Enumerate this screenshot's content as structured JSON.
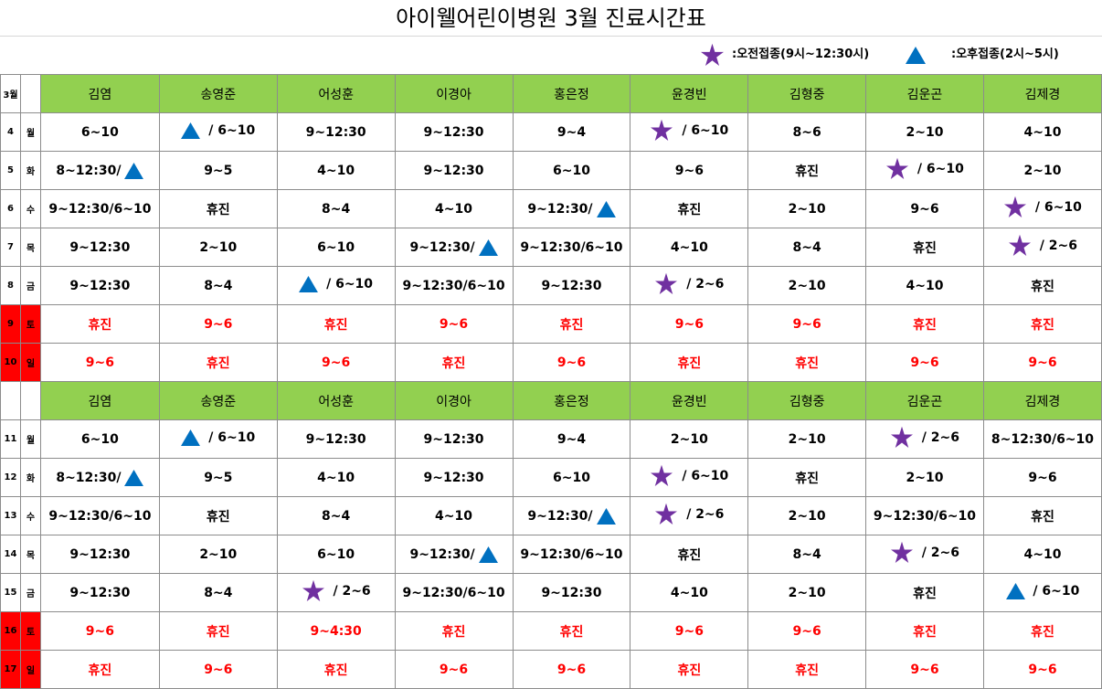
{
  "title": "아이웰어린이병원 3월 진료시간표",
  "legend": {
    "am": {
      "icon": "star-icon",
      "color": "#7030a0",
      "label": ":오전접종(9시~12:30시)"
    },
    "pm": {
      "icon": "triangle-icon",
      "color": "#0070c0",
      "label": ":오후접종(2시~5시)"
    }
  },
  "colors": {
    "header_bg": "#92d050",
    "weekend_text": "#ff0000",
    "weekend_day_bg": "#ff0000"
  },
  "month_label": "3월",
  "doctors": [
    "김염",
    "송영준",
    "어성훈",
    "이경아",
    "홍은정",
    "윤경빈",
    "김형중",
    "김운곤",
    "김제경"
  ],
  "weeks": [
    {
      "show_month": true,
      "rows": [
        {
          "date": "4",
          "dow": "월",
          "weekend": false,
          "cells": [
            {
              "t": "6~10"
            },
            {
              "pre": "tri",
              "t": " / 6~10"
            },
            {
              "t": "9~12:30"
            },
            {
              "t": "9~12:30"
            },
            {
              "t": "9~4"
            },
            {
              "pre": "star",
              "t": " / 6~10"
            },
            {
              "t": "8~6"
            },
            {
              "t": "2~10"
            },
            {
              "t": "4~10"
            }
          ]
        },
        {
          "date": "5",
          "dow": "화",
          "weekend": false,
          "cells": [
            {
              "t": "8~12:30/",
              "post": "tri"
            },
            {
              "t": "9~5"
            },
            {
              "t": "4~10"
            },
            {
              "t": "9~12:30"
            },
            {
              "t": "6~10"
            },
            {
              "t": "9~6"
            },
            {
              "t": "휴진"
            },
            {
              "pre": "star",
              "t": " / 6~10"
            },
            {
              "t": "2~10"
            }
          ]
        },
        {
          "date": "6",
          "dow": "수",
          "weekend": false,
          "cells": [
            {
              "t": "9~12:30/6~10"
            },
            {
              "t": "휴진"
            },
            {
              "t": "8~4"
            },
            {
              "t": "4~10"
            },
            {
              "t": "9~12:30/",
              "post": "tri"
            },
            {
              "t": "휴진"
            },
            {
              "t": "2~10"
            },
            {
              "t": "9~6"
            },
            {
              "pre": "star",
              "t": " / 6~10"
            }
          ]
        },
        {
          "date": "7",
          "dow": "목",
          "weekend": false,
          "cells": [
            {
              "t": "9~12:30"
            },
            {
              "t": "2~10"
            },
            {
              "t": "6~10"
            },
            {
              "t": "9~12:30/",
              "post": "tri"
            },
            {
              "t": "9~12:30/6~10"
            },
            {
              "t": "4~10"
            },
            {
              "t": "8~4"
            },
            {
              "t": "휴진"
            },
            {
              "pre": "star",
              "t": " / 2~6"
            }
          ]
        },
        {
          "date": "8",
          "dow": "금",
          "weekend": false,
          "cells": [
            {
              "t": "9~12:30"
            },
            {
              "t": "8~4"
            },
            {
              "pre": "tri",
              "t": " / 6~10"
            },
            {
              "t": "9~12:30/6~10"
            },
            {
              "t": "9~12:30"
            },
            {
              "pre": "star",
              "t": " / 2~6"
            },
            {
              "t": "2~10"
            },
            {
              "t": "4~10"
            },
            {
              "t": "휴진"
            }
          ]
        },
        {
          "date": "9",
          "dow": "토",
          "weekend": true,
          "cells": [
            {
              "t": "휴진"
            },
            {
              "t": "9~6"
            },
            {
              "t": "휴진"
            },
            {
              "t": "9~6"
            },
            {
              "t": "휴진"
            },
            {
              "t": "9~6"
            },
            {
              "t": "9~6"
            },
            {
              "t": "휴진"
            },
            {
              "t": "휴진"
            }
          ]
        },
        {
          "date": "10",
          "dow": "일",
          "weekend": true,
          "cells": [
            {
              "t": "9~6"
            },
            {
              "t": "휴진"
            },
            {
              "t": "9~6"
            },
            {
              "t": "휴진"
            },
            {
              "t": "9~6"
            },
            {
              "t": "휴진"
            },
            {
              "t": "휴진"
            },
            {
              "t": "9~6"
            },
            {
              "t": "9~6"
            }
          ]
        }
      ]
    },
    {
      "show_month": false,
      "rows": [
        {
          "date": "11",
          "dow": "월",
          "weekend": false,
          "cells": [
            {
              "t": "6~10"
            },
            {
              "pre": "tri",
              "t": " / 6~10"
            },
            {
              "t": "9~12:30"
            },
            {
              "t": "9~12:30"
            },
            {
              "t": "9~4"
            },
            {
              "t": "2~10"
            },
            {
              "t": "2~10"
            },
            {
              "pre": "star",
              "t": " / 2~6"
            },
            {
              "t": "8~12:30/6~10"
            }
          ]
        },
        {
          "date": "12",
          "dow": "화",
          "weekend": false,
          "cells": [
            {
              "t": "8~12:30/",
              "post": "tri"
            },
            {
              "t": "9~5"
            },
            {
              "t": "4~10"
            },
            {
              "t": "9~12:30"
            },
            {
              "t": "6~10"
            },
            {
              "pre": "star",
              "t": " / 6~10"
            },
            {
              "t": "휴진"
            },
            {
              "t": "2~10"
            },
            {
              "t": "9~6"
            }
          ]
        },
        {
          "date": "13",
          "dow": "수",
          "weekend": false,
          "cells": [
            {
              "t": "9~12:30/6~10"
            },
            {
              "t": "휴진"
            },
            {
              "t": "8~4"
            },
            {
              "t": "4~10"
            },
            {
              "t": "9~12:30/",
              "post": "tri"
            },
            {
              "pre": "star",
              "t": " / 2~6"
            },
            {
              "t": "2~10"
            },
            {
              "t": "9~12:30/6~10"
            },
            {
              "t": "휴진"
            }
          ]
        },
        {
          "date": "14",
          "dow": "목",
          "weekend": false,
          "cells": [
            {
              "t": "9~12:30"
            },
            {
              "t": "2~10"
            },
            {
              "t": "6~10"
            },
            {
              "t": "9~12:30/",
              "post": "tri"
            },
            {
              "t": "9~12:30/6~10"
            },
            {
              "t": "휴진"
            },
            {
              "t": "8~4"
            },
            {
              "pre": "star",
              "t": " / 2~6"
            },
            {
              "t": "4~10"
            }
          ]
        },
        {
          "date": "15",
          "dow": "금",
          "weekend": false,
          "cells": [
            {
              "t": "9~12:30"
            },
            {
              "t": "8~4"
            },
            {
              "pre": "star",
              "t": " / 2~6"
            },
            {
              "t": "9~12:30/6~10"
            },
            {
              "t": "9~12:30"
            },
            {
              "t": "4~10"
            },
            {
              "t": "2~10"
            },
            {
              "t": "휴진"
            },
            {
              "pre": "tri",
              "t": " / 6~10"
            }
          ]
        },
        {
          "date": "16",
          "dow": "토",
          "weekend": true,
          "cells": [
            {
              "t": "9~6"
            },
            {
              "t": "휴진"
            },
            {
              "t": "9~4:30"
            },
            {
              "t": "휴진"
            },
            {
              "t": "휴진"
            },
            {
              "t": "9~6"
            },
            {
              "t": "9~6"
            },
            {
              "t": "휴진"
            },
            {
              "t": "휴진"
            }
          ]
        },
        {
          "date": "17",
          "dow": "일",
          "weekend": true,
          "cells": [
            {
              "t": "휴진"
            },
            {
              "t": "9~6"
            },
            {
              "t": "휴진"
            },
            {
              "t": "9~6"
            },
            {
              "t": "9~6"
            },
            {
              "t": "휴진"
            },
            {
              "t": "휴진"
            },
            {
              "t": "9~6"
            },
            {
              "t": "9~6"
            }
          ]
        }
      ]
    }
  ]
}
